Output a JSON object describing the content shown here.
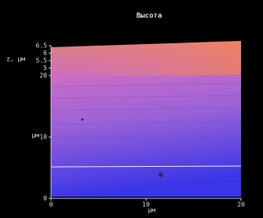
{
  "chart_data": {
    "type": "image",
    "title": "Высота",
    "xlabel": "µм",
    "ylabel": "µм",
    "zlabel": "z, µм",
    "xlim": [
      0,
      20
    ],
    "ylim": [
      0,
      20
    ],
    "zlim": [
      4.5,
      6.5
    ],
    "xticks": [
      0,
      10,
      20
    ],
    "yticks": [
      0,
      10,
      20
    ],
    "zticks": [
      6.5,
      6,
      5.5,
      5
    ]
  }
}
